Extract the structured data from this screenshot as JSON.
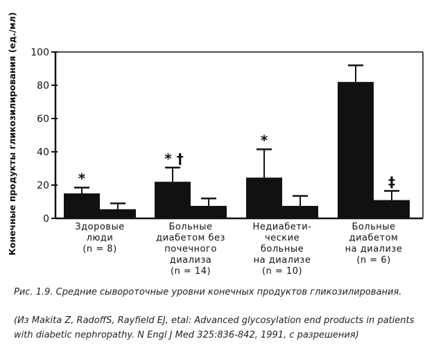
{
  "chart_data": {
    "type": "bar",
    "ylabel": "Конечные продукты гликозилирования (ед./мл)",
    "ylim": [
      0,
      100
    ],
    "yticks": [
      0,
      20,
      40,
      60,
      80,
      100
    ],
    "grid": false,
    "categories": [
      [
        "Здоровые",
        "люди",
        "(n = 8)"
      ],
      [
        "Больные",
        "диабетом без",
        "почечного",
        "диализа",
        "(n = 14)"
      ],
      [
        "Недиабети-",
        "ческие",
        "больные",
        "на диализе",
        "(n = 10)"
      ],
      [
        "Больные",
        "диабетом",
        "на диализе",
        "(n = 6)"
      ]
    ],
    "series": [
      {
        "values": [
          15,
          22,
          24.5,
          82
        ],
        "errors": [
          3.5,
          8.5,
          17,
          10
        ]
      },
      {
        "values": [
          5.5,
          7.5,
          7.5,
          11
        ],
        "errors": [
          3.5,
          4.5,
          6,
          5.5
        ]
      }
    ],
    "annotations": [
      "*",
      "* †",
      "*",
      "‡"
    ]
  },
  "caption": "Рис. 1.9. Средние сывороточные уровни конечных продуктов гликозилирования.",
  "source": "(Из Makita Z, RadoffS, Rayfield EJ, etal: Advanced glycosylation end products in patients with diabetic nephropathy. N Engl J Med 325:836-842, 1991, с разрешения)"
}
